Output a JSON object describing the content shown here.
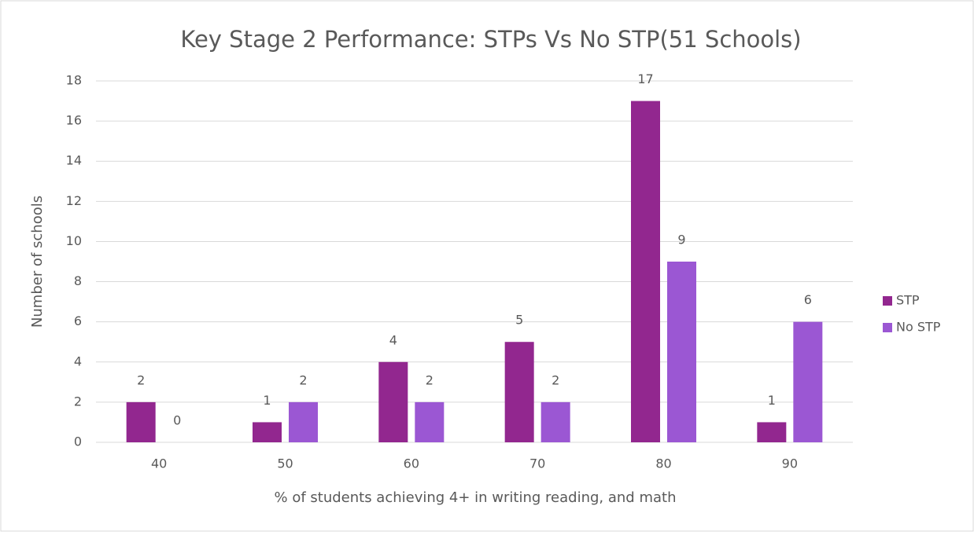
{
  "chart_data": {
    "type": "bar",
    "title": "Key Stage 2 Performance: STPs Vs No STP(51 Schools)",
    "x_label": "% of students achieving 4+ in writing reading, and math",
    "y_label": "Number of schools",
    "categories": [
      "40",
      "50",
      "60",
      "70",
      "80",
      "90"
    ],
    "series": [
      {
        "name": "STP",
        "color": "#92278f",
        "values": [
          2,
          1,
          4,
          5,
          17,
          1
        ]
      },
      {
        "name": "No STP",
        "color": "#9b57d3",
        "values": [
          0,
          2,
          2,
          2,
          9,
          6
        ]
      }
    ],
    "ylim": [
      0,
      18
    ],
    "yticks": [
      0,
      2,
      4,
      6,
      8,
      10,
      12,
      14,
      16,
      18
    ],
    "grid": true,
    "legend": "right"
  }
}
